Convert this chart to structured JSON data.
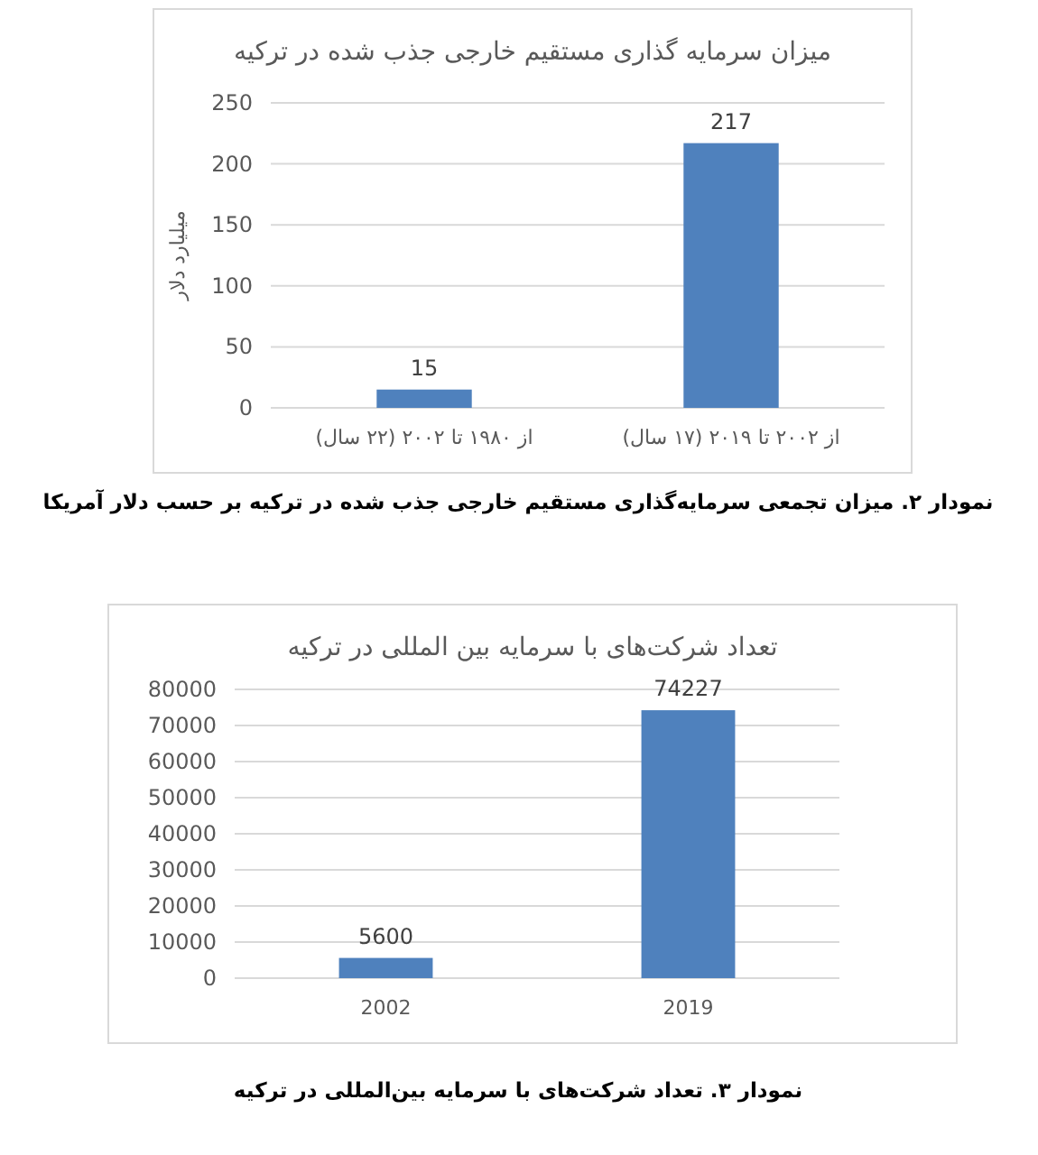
{
  "chart_data": [
    {
      "type": "bar",
      "title": "میزان سرمایه گذاری مستقیم خارجی جذب شده در ترکیه",
      "ylabel": "میلیارد دلار",
      "categories": [
        "از ۱۹۸۰ تا ۲۰۰۲ (۲۲ سال)",
        "از ۲۰۰۲ تا ۲۰۱۹ (۱۷ سال)"
      ],
      "values": [
        15,
        217
      ],
      "color": "#4f81bd",
      "ylim": [
        0,
        250
      ],
      "yticks": [
        0,
        50,
        100,
        150,
        200,
        250
      ],
      "grid": "y",
      "data_labels": true,
      "annotations": [
        "نمودار ۲. میزان تجمعی سرمایه‌گذاری مستقیم خارجی جذب شده در ترکیه بر حسب دلار آمریکا"
      ]
    },
    {
      "type": "bar",
      "title": "تعداد شرکت‌های با سرمایه بین المللی در ترکیه",
      "categories": [
        "2002",
        "2019"
      ],
      "values": [
        5600,
        74227
      ],
      "color": "#4f81bd",
      "ylim": [
        0,
        80000
      ],
      "yticks": [
        0,
        10000,
        20000,
        30000,
        40000,
        50000,
        60000,
        70000,
        80000
      ],
      "grid": "y",
      "data_labels": true,
      "annotations": [
        "نمودار ۳. تعداد شرکت‌های با سرمایه بین‌المللی در ترکیه"
      ]
    }
  ]
}
